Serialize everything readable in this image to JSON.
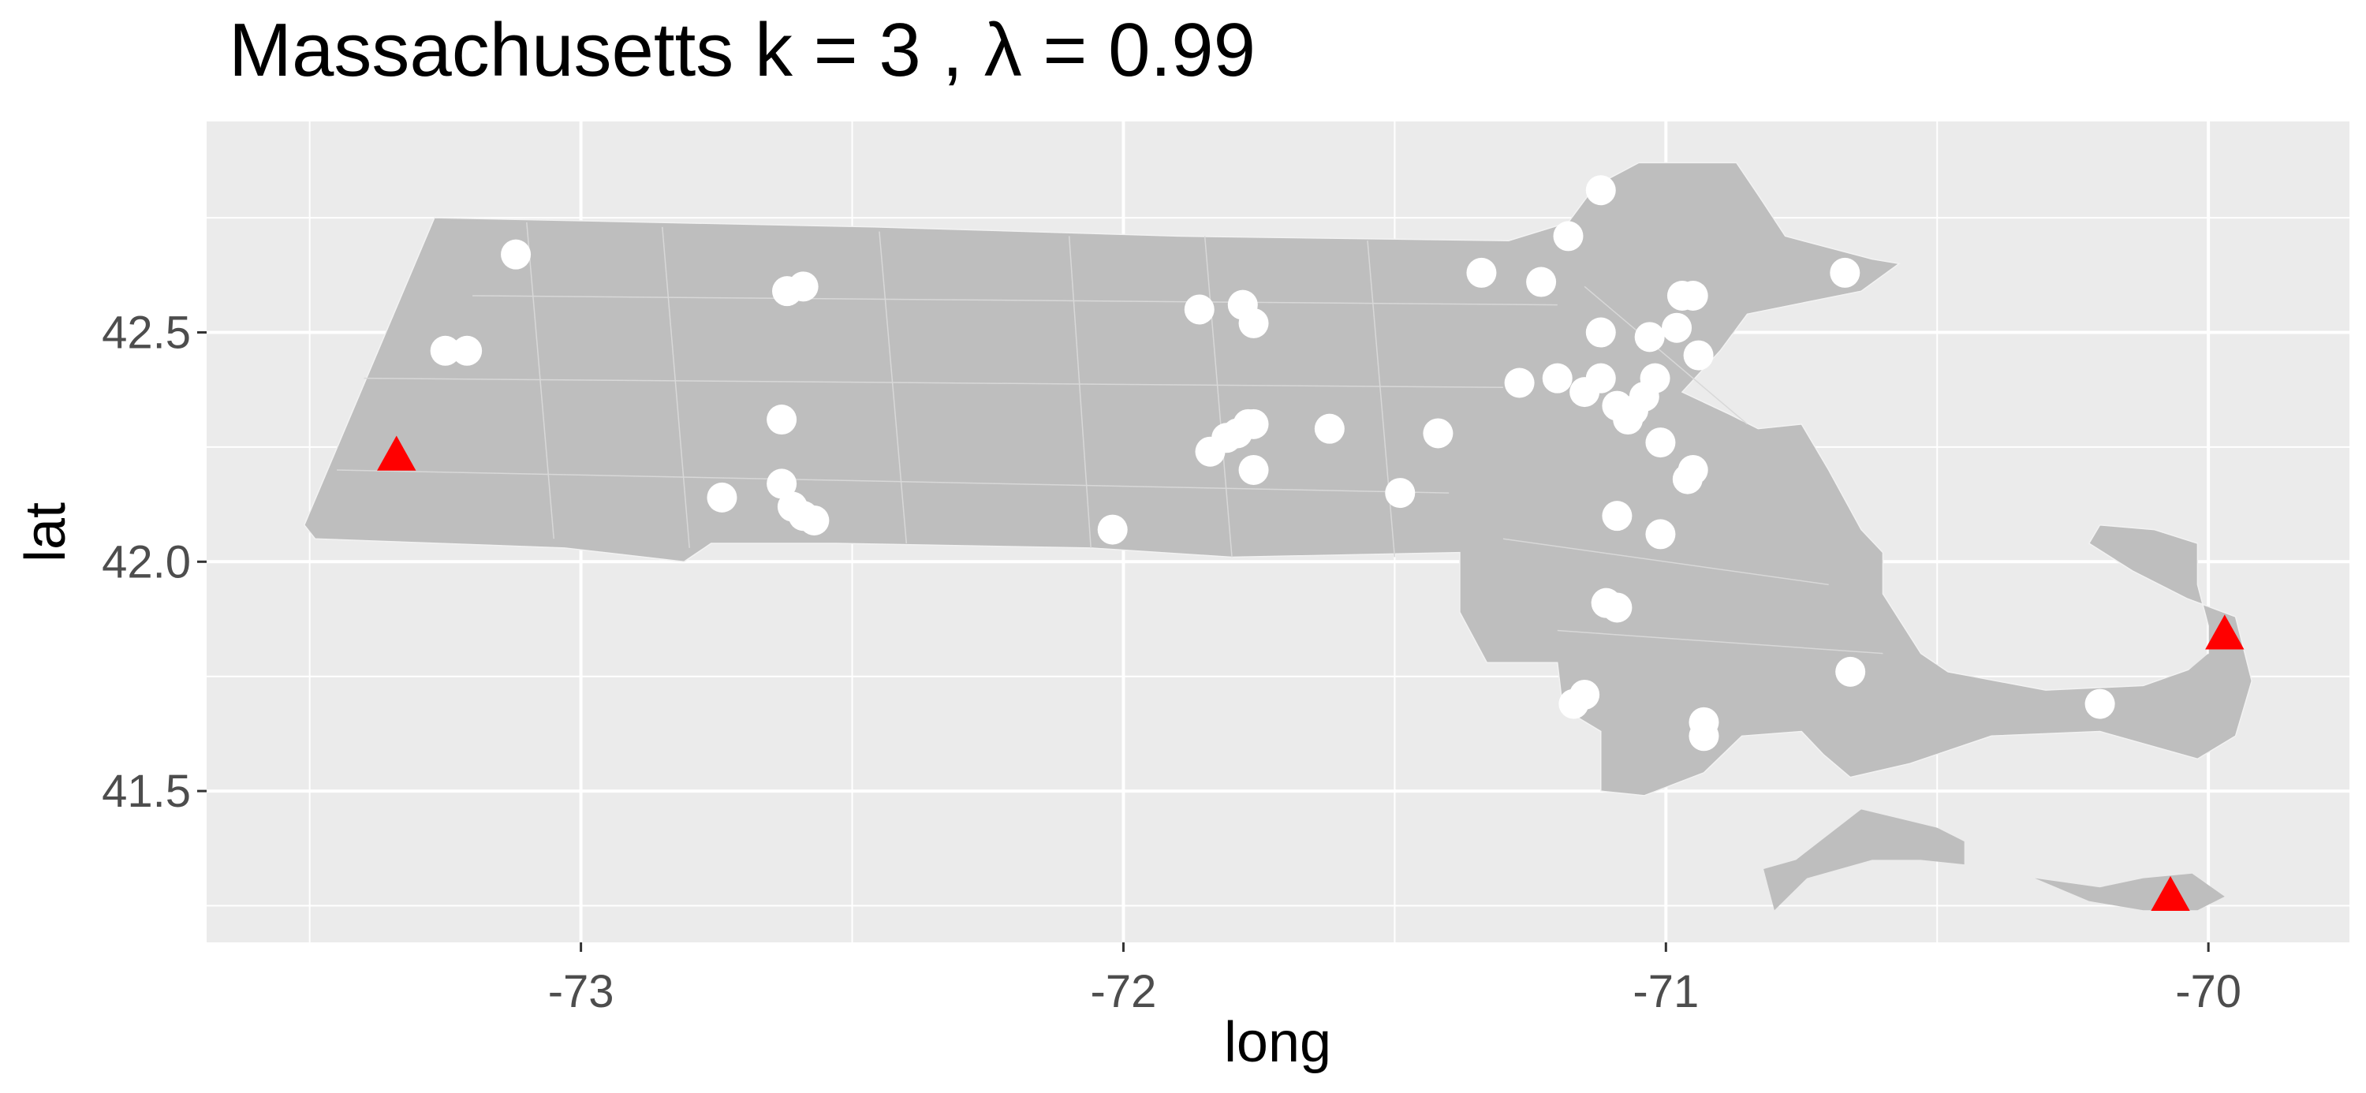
{
  "chart_data": {
    "type": "scatter",
    "title": "Massachusetts  k =  3 ,  λ  =  0.99",
    "xlabel": "long",
    "ylabel": "lat",
    "xlim": [
      -73.69,
      -69.74
    ],
    "ylim": [
      41.17,
      42.96
    ],
    "x_ticks": [
      -73,
      -72,
      -71,
      -70
    ],
    "x_tick_labels": [
      "-73",
      "-72",
      "-71",
      "-70"
    ],
    "y_ticks": [
      41.5,
      42.0,
      42.5
    ],
    "y_tick_labels": [
      "41.5",
      "42.0",
      "42.5"
    ],
    "grid": true,
    "panel_background": "#ebebeb",
    "grid_color": "#ffffff",
    "map_fill": "#bebebe",
    "colors": {
      "points": "#ffffff",
      "centers": "#ff0000"
    },
    "series": [
      {
        "marker": "circle",
        "x": [
          -73.12,
          -73.25,
          -73.21,
          -72.59,
          -72.62,
          -72.63,
          -72.74,
          -72.63,
          -72.61,
          -72.59,
          -72.57,
          -72.02,
          -71.86,
          -71.78,
          -71.76,
          -71.76,
          -71.84,
          -71.81,
          -71.79,
          -71.77,
          -71.62,
          -71.76,
          -71.49,
          -71.42,
          -71.34,
          -71.23,
          -71.27,
          -71.2,
          -71.18,
          -71.12,
          -71.12,
          -71.15,
          -71.12,
          -71.09,
          -71.07,
          -71.06,
          -71.04,
          -71.02,
          -71.03,
          -71.01,
          -70.98,
          -70.97,
          -70.95,
          -70.94,
          -70.95,
          -70.96,
          -71.09,
          -71.01,
          -71.11,
          -71.09,
          -71.17,
          -71.15,
          -70.93,
          -70.93,
          -70.67,
          -70.66,
          -70.2
        ],
        "y": [
          42.67,
          42.46,
          42.46,
          42.6,
          42.59,
          42.31,
          42.14,
          42.17,
          42.12,
          42.1,
          42.09,
          42.07,
          42.55,
          42.56,
          42.52,
          42.3,
          42.24,
          42.27,
          42.28,
          42.3,
          42.29,
          42.2,
          42.15,
          42.28,
          42.63,
          42.61,
          42.39,
          42.4,
          42.71,
          42.81,
          42.5,
          42.37,
          42.4,
          42.34,
          42.31,
          42.33,
          42.36,
          42.4,
          42.49,
          42.26,
          42.51,
          42.58,
          42.58,
          42.45,
          42.2,
          42.18,
          42.1,
          42.06,
          41.91,
          41.9,
          41.69,
          41.71,
          41.65,
          41.62,
          42.63,
          41.76,
          41.69
        ]
      },
      {
        "marker": "triangle",
        "x": [
          -73.34,
          -69.97,
          -70.07
        ],
        "y": [
          42.23,
          41.84,
          41.27
        ]
      }
    ]
  }
}
